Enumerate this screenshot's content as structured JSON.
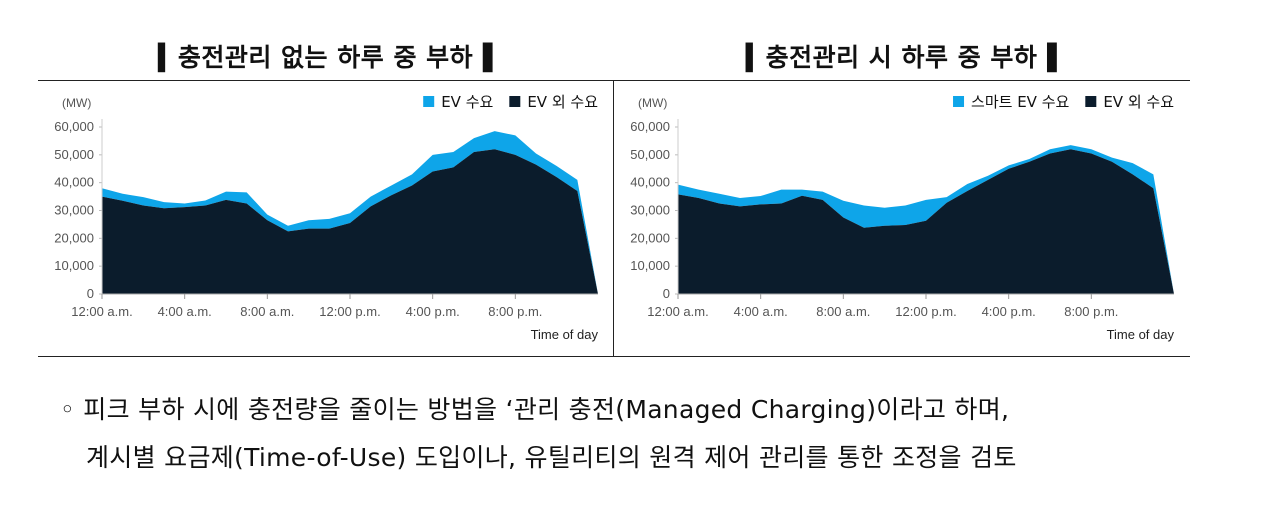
{
  "chart_data": [
    {
      "type": "area",
      "title": "▍충전관리 없는 하루 중 부하▐",
      "unit_label": "(MW)",
      "xlabel": "Time of day",
      "ylabel": "(MW)",
      "ylim": [
        0,
        60000
      ],
      "yticks": [
        "0",
        "10,000",
        "20,000",
        "30,000",
        "40,000",
        "50,000",
        "60,000"
      ],
      "ytick_values": [
        0,
        10000,
        20000,
        30000,
        40000,
        50000,
        60000
      ],
      "xticks": [
        "12:00 a.m.",
        "4:00 a.m.",
        "8:00 a.m.",
        "12:00 p.m.",
        "4:00 p.m.",
        "8:00 p.m."
      ],
      "xtick_hours": [
        0,
        4,
        8,
        12,
        16,
        20
      ],
      "x_hours": [
        0,
        1,
        2,
        3,
        4,
        5,
        6,
        7,
        8,
        9,
        10,
        11,
        12,
        13,
        14,
        15,
        16,
        17,
        18,
        19,
        20,
        21,
        22,
        23,
        24
      ],
      "legend_position": "top-right",
      "stacked": true,
      "series": [
        {
          "name": "EV 외 수요",
          "color": "#0b1c2c",
          "values": [
            35000,
            33500,
            31800,
            30800,
            31200,
            31800,
            33800,
            32500,
            26500,
            22500,
            23500,
            23500,
            25500,
            31500,
            35500,
            39000,
            44000,
            45500,
            51000,
            52000,
            50000,
            46500,
            42000,
            37000,
            0
          ]
        },
        {
          "name": "EV 수요",
          "color": "#0ea5e9",
          "values": [
            3000,
            2500,
            3000,
            2200,
            1300,
            1800,
            3000,
            4000,
            2000,
            2000,
            3000,
            3500,
            3500,
            3500,
            3500,
            4000,
            6000,
            5500,
            5000,
            6500,
            7000,
            4000,
            4000,
            4000,
            0
          ]
        }
      ]
    },
    {
      "type": "area",
      "title": "▍충전관리 시 하루 중 부하▐",
      "unit_label": "(MW)",
      "xlabel": "Time of day",
      "ylabel": "(MW)",
      "ylim": [
        0,
        60000
      ],
      "yticks": [
        "0",
        "10,000",
        "20,000",
        "30,000",
        "40,000",
        "50,000",
        "60,000"
      ],
      "ytick_values": [
        0,
        10000,
        20000,
        30000,
        40000,
        50000,
        60000
      ],
      "xticks": [
        "12:00 a.m.",
        "4:00 a.m.",
        "8:00 a.m.",
        "12:00 p.m.",
        "4:00 p.m.",
        "8:00 p.m."
      ],
      "xtick_hours": [
        0,
        4,
        8,
        12,
        16,
        20
      ],
      "x_hours": [
        0,
        1,
        2,
        3,
        4,
        5,
        6,
        7,
        8,
        9,
        10,
        11,
        12,
        13,
        14,
        15,
        16,
        17,
        18,
        19,
        20,
        21,
        22,
        23,
        24
      ],
      "legend_position": "top-right",
      "stacked": true,
      "series": [
        {
          "name": "EV 외 수요",
          "color": "#0b1c2c",
          "values": [
            35800,
            34500,
            32500,
            31500,
            32200,
            32500,
            35300,
            33800,
            27500,
            23800,
            24500,
            24800,
            26300,
            32800,
            37000,
            41000,
            45000,
            47500,
            50500,
            52000,
            50500,
            47500,
            43000,
            38000,
            0
          ]
        },
        {
          "name": "스마트 EV 수요",
          "color": "#0ea5e9",
          "values": [
            3500,
            3000,
            3500,
            3000,
            3000,
            5000,
            2200,
            3000,
            6000,
            8000,
            6500,
            7000,
            7500,
            2000,
            2500,
            1500,
            1200,
            1000,
            1500,
            1500,
            1500,
            1500,
            4000,
            5000,
            0
          ]
        }
      ]
    }
  ],
  "notes": {
    "line1": "◦ 피크 부하 시에 충전량을 줄이는 방법을 ‘관리 충전(Managed Charging)이라고 하며,",
    "line2": "계시별 요금제(Time-of-Use) 도입이나, 유틸리티의 원격 제어 관리를 통한 조정을 검토"
  }
}
